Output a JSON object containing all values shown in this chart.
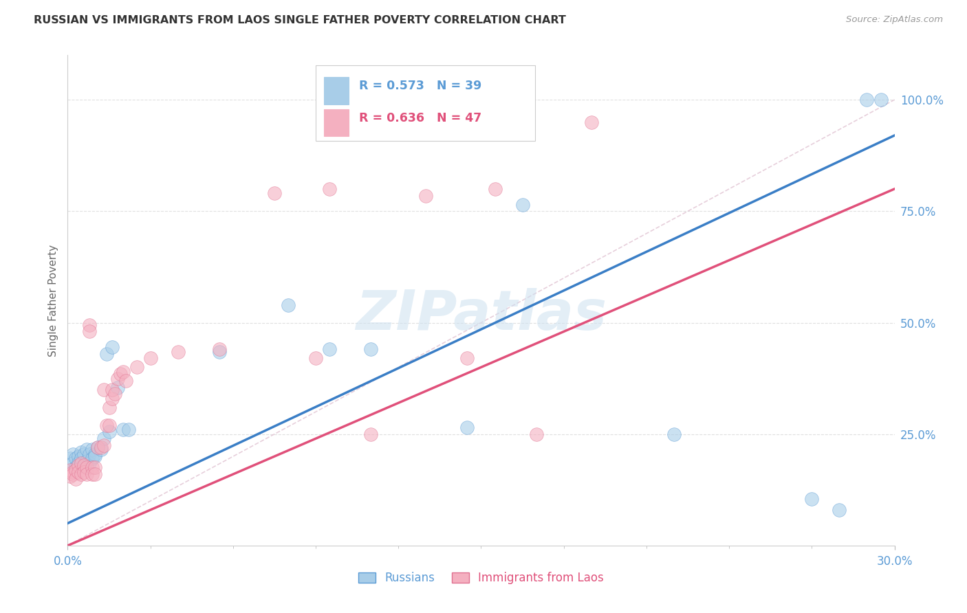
{
  "title": "RUSSIAN VS IMMIGRANTS FROM LAOS SINGLE FATHER POVERTY CORRELATION CHART",
  "source": "Source: ZipAtlas.com",
  "ylabel": "Single Father Poverty",
  "legend_blue_r": "0.573",
  "legend_blue_n": "39",
  "legend_pink_r": "0.636",
  "legend_pink_n": "47",
  "legend_label_blue": "Russians",
  "legend_label_pink": "Immigrants from Laos",
  "blue_scatter_color": "#a8cde8",
  "blue_scatter_edge": "#5b9bd5",
  "pink_scatter_color": "#f4b0c0",
  "pink_scatter_edge": "#e07090",
  "blue_line_color": "#3a7ec6",
  "pink_line_color": "#e0507a",
  "ref_line_color": "#ddbbcc",
  "axis_label_color": "#5b9bd5",
  "grid_color": "#e0e0e0",
  "watermark_color": "#cce0f0",
  "title_color": "#333333",
  "source_color": "#999999",
  "xmin": 0.0,
  "xmax": 0.3,
  "ymin": 0.0,
  "ymax": 1.1,
  "yticks_right": [
    0.0,
    0.25,
    0.5,
    0.75,
    1.0
  ],
  "ytick_labels_right": [
    "",
    "25.0%",
    "50.0%",
    "75.0%",
    "100.0%"
  ],
  "blue_line_x0": 0.0,
  "blue_line_y0": 0.05,
  "blue_line_x1": 0.3,
  "blue_line_y1": 0.92,
  "pink_line_x0": 0.0,
  "pink_line_y0": 0.0,
  "pink_line_x1": 0.3,
  "pink_line_y1": 0.8,
  "russians_x": [
    0.001,
    0.002,
    0.002,
    0.003,
    0.003,
    0.004,
    0.004,
    0.005,
    0.005,
    0.006,
    0.006,
    0.007,
    0.007,
    0.008,
    0.008,
    0.009,
    0.009,
    0.01,
    0.01,
    0.011,
    0.012,
    0.013,
    0.014,
    0.015,
    0.016,
    0.018,
    0.02,
    0.022,
    0.055,
    0.08,
    0.095,
    0.11,
    0.145,
    0.165,
    0.22,
    0.27,
    0.28,
    0.29,
    0.295
  ],
  "russians_y": [
    0.195,
    0.205,
    0.185,
    0.195,
    0.175,
    0.2,
    0.185,
    0.21,
    0.195,
    0.205,
    0.18,
    0.215,
    0.19,
    0.205,
    0.185,
    0.215,
    0.195,
    0.205,
    0.2,
    0.22,
    0.215,
    0.24,
    0.43,
    0.255,
    0.445,
    0.355,
    0.26,
    0.26,
    0.435,
    0.54,
    0.44,
    0.44,
    0.265,
    0.765,
    0.25,
    0.105,
    0.08,
    1.0,
    1.0
  ],
  "laos_x": [
    0.001,
    0.001,
    0.002,
    0.002,
    0.003,
    0.003,
    0.004,
    0.004,
    0.005,
    0.005,
    0.006,
    0.006,
    0.007,
    0.007,
    0.008,
    0.008,
    0.009,
    0.009,
    0.01,
    0.01,
    0.011,
    0.012,
    0.013,
    0.013,
    0.014,
    0.015,
    0.015,
    0.016,
    0.016,
    0.017,
    0.018,
    0.019,
    0.02,
    0.021,
    0.025,
    0.03,
    0.04,
    0.055,
    0.075,
    0.09,
    0.095,
    0.11,
    0.13,
    0.145,
    0.155,
    0.17,
    0.19
  ],
  "laos_y": [
    0.17,
    0.155,
    0.165,
    0.16,
    0.17,
    0.15,
    0.18,
    0.165,
    0.185,
    0.16,
    0.18,
    0.165,
    0.175,
    0.16,
    0.495,
    0.48,
    0.175,
    0.16,
    0.175,
    0.16,
    0.22,
    0.22,
    0.225,
    0.35,
    0.27,
    0.27,
    0.31,
    0.33,
    0.35,
    0.34,
    0.375,
    0.385,
    0.39,
    0.37,
    0.4,
    0.42,
    0.435,
    0.44,
    0.79,
    0.42,
    0.8,
    0.25,
    0.785,
    0.42,
    0.8,
    0.25,
    0.95
  ]
}
